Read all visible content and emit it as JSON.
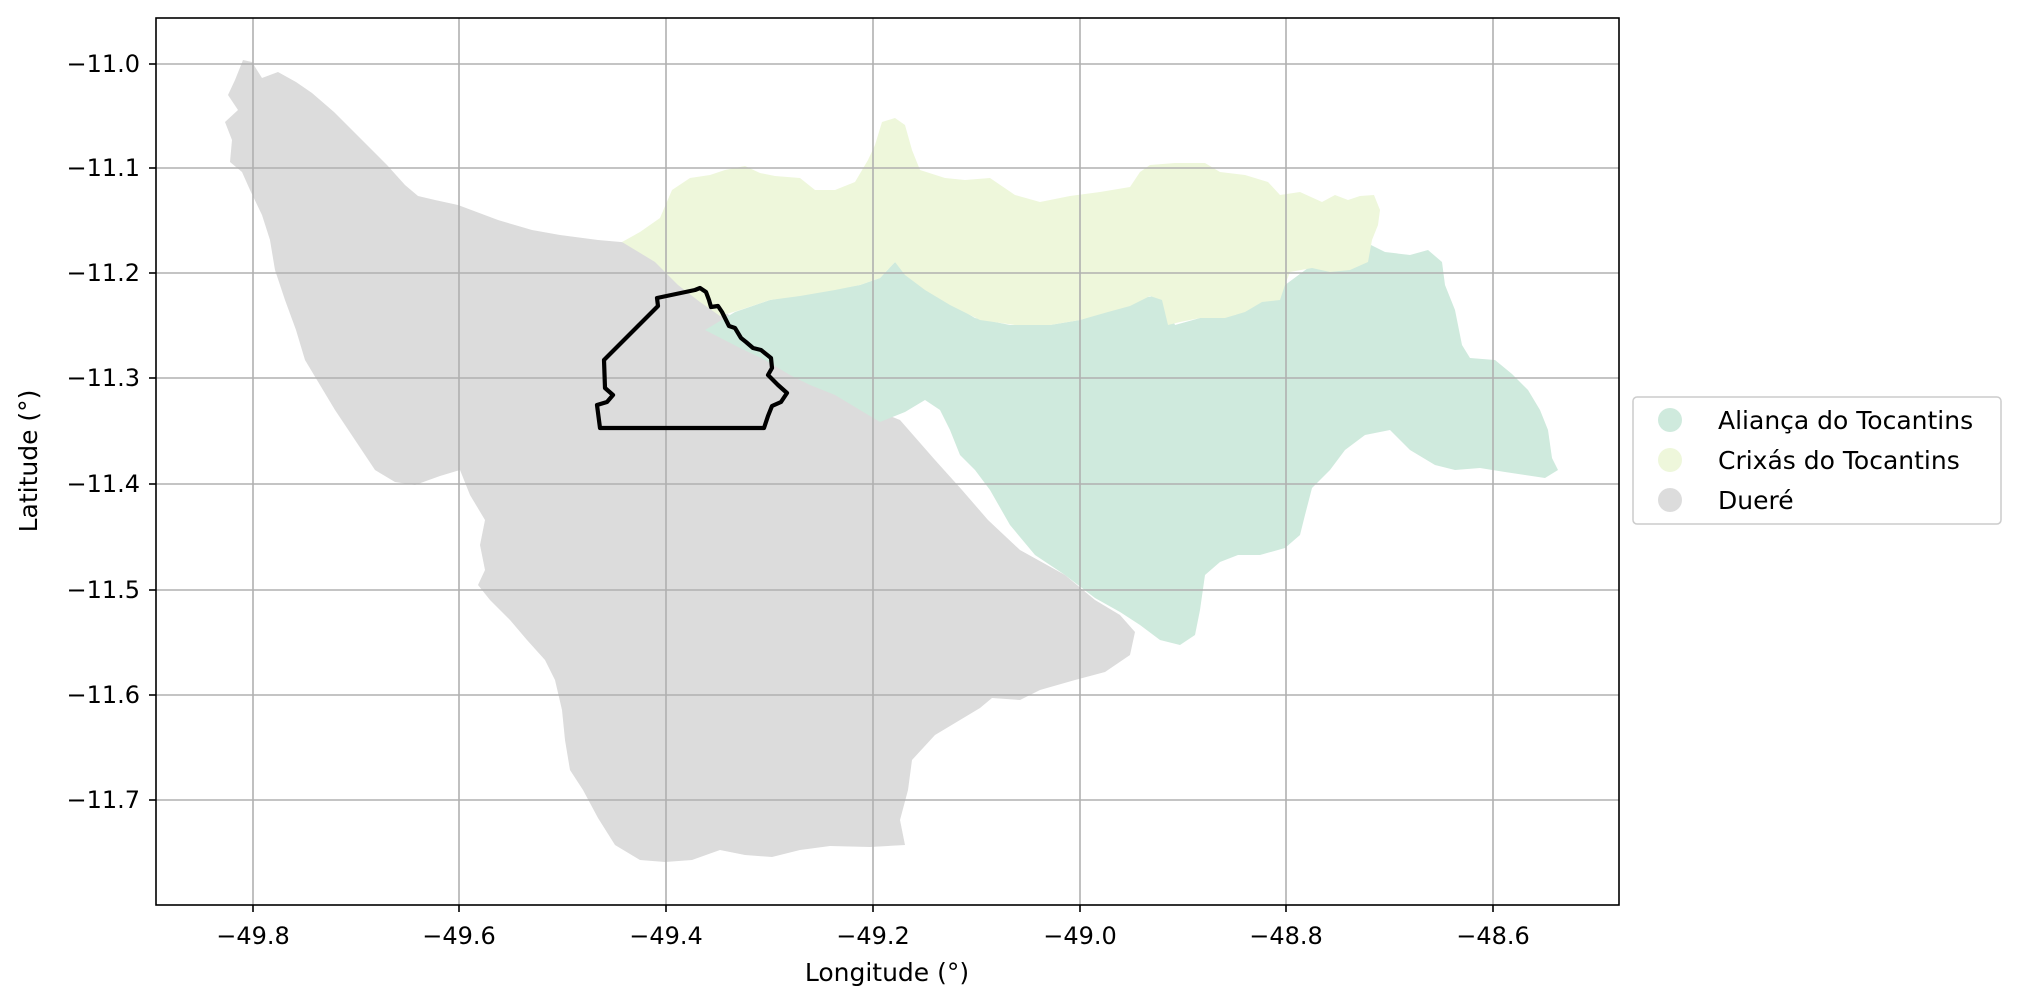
{
  "map": {
    "x_axis": {
      "label": "Longitude (°)",
      "ticks": [
        "−49.8",
        "−49.6",
        "−49.4",
        "−49.2",
        "−49.0",
        "−48.8",
        "−48.6"
      ]
    },
    "y_axis": {
      "label": "Latitude (°)",
      "ticks": [
        "−11.0",
        "−11.1",
        "−11.2",
        "−11.3",
        "−11.4",
        "−11.5",
        "−11.6",
        "−11.7"
      ]
    },
    "grid": true,
    "legend": {
      "placement": "right-center",
      "items": [
        {
          "label": "Aliança do Tocantins",
          "color": "#cfeadd"
        },
        {
          "label": "Crixás do Tocantins",
          "color": "#eef7db"
        },
        {
          "label": "Dueré",
          "color": "#dcdcdc"
        }
      ]
    },
    "highlight_outline_color": "#000000"
  }
}
